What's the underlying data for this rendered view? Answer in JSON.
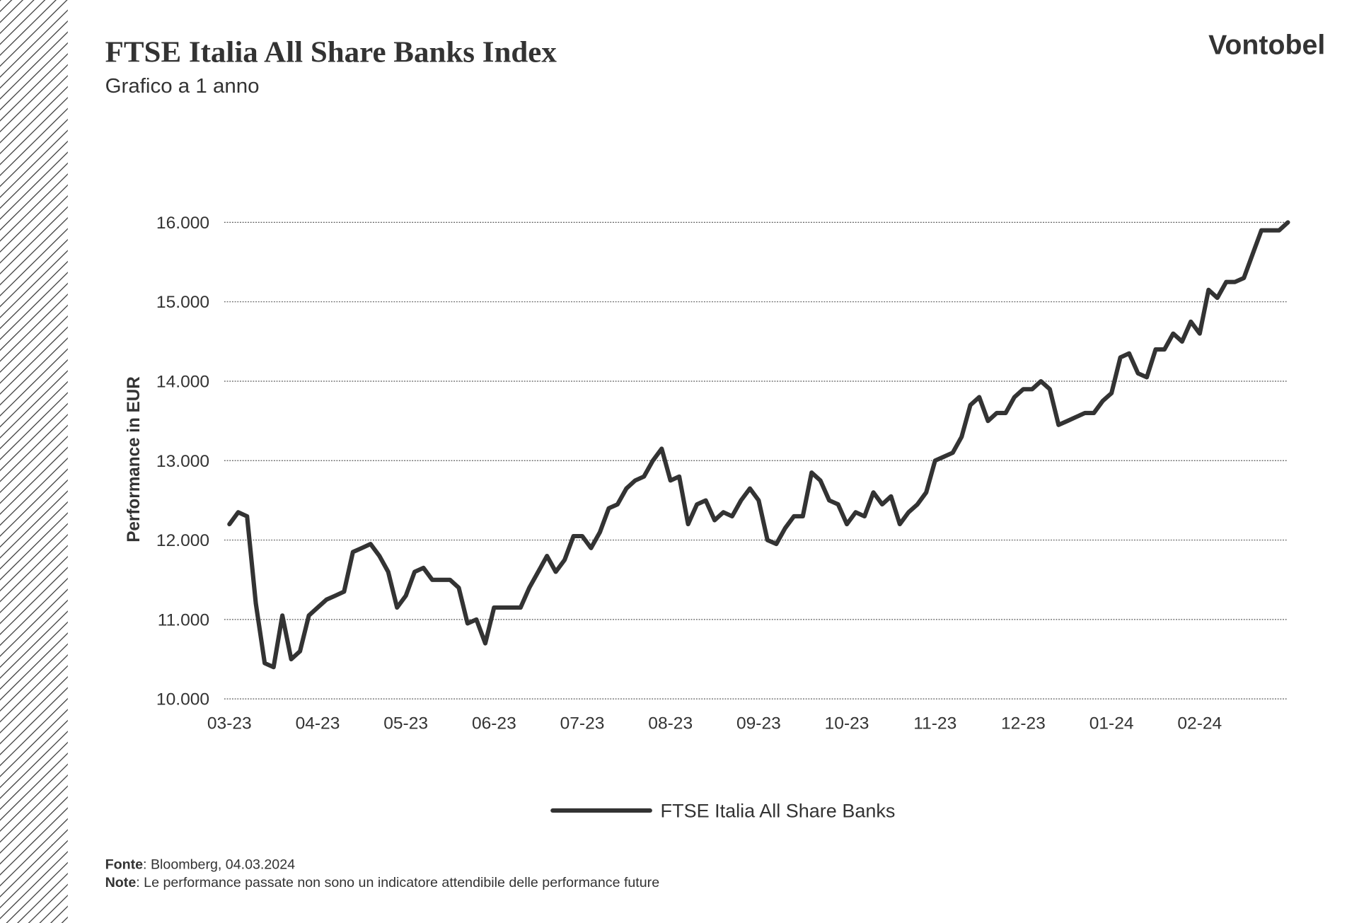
{
  "logo": "Vontobel",
  "footnotes": [
    {
      "label": "Fonte",
      "text": ": Bloomberg, 04.03.2024"
    },
    {
      "label": "Note",
      "text": ": Le performance passate non sono un indicatore attendibile delle performance future"
    }
  ],
  "chart_data": {
    "type": "line",
    "title": "FTSE Italia All Share Banks Index",
    "subtitle": "Grafico a 1 anno",
    "ylabel": "Performance in EUR",
    "categories": [
      "03-23",
      null,
      null,
      null,
      null,
      null,
      null,
      null,
      null,
      null,
      "04-23",
      null,
      null,
      null,
      null,
      null,
      null,
      null,
      null,
      null,
      "05-23",
      null,
      null,
      null,
      null,
      null,
      null,
      null,
      null,
      null,
      "06-23",
      null,
      null,
      null,
      null,
      null,
      null,
      null,
      null,
      null,
      "07-23",
      null,
      null,
      null,
      null,
      null,
      null,
      null,
      null,
      null,
      "08-23",
      null,
      null,
      null,
      null,
      null,
      null,
      null,
      null,
      null,
      "09-23",
      null,
      null,
      null,
      null,
      null,
      null,
      null,
      null,
      null,
      "10-23",
      null,
      null,
      null,
      null,
      null,
      null,
      null,
      null,
      null,
      "11-23",
      null,
      null,
      null,
      null,
      null,
      null,
      null,
      null,
      null,
      "12-23",
      null,
      null,
      null,
      null,
      null,
      null,
      null,
      null,
      null,
      "01-24",
      null,
      null,
      null,
      null,
      null,
      null,
      null,
      null,
      null,
      "02-24",
      null,
      null,
      null,
      null,
      null,
      null,
      null,
      null,
      null,
      null
    ],
    "series": [
      {
        "name": "FTSE Italia All Share Banks",
        "color": "#333333",
        "values": [
          12200,
          12350,
          12300,
          11200,
          10450,
          10400,
          11050,
          10500,
          10600,
          11050,
          11150,
          11250,
          11300,
          11350,
          11850,
          11900,
          11950,
          11800,
          11600,
          11150,
          11300,
          11600,
          11650,
          11500,
          11500,
          11500,
          11400,
          10950,
          11000,
          10700,
          11150,
          11150,
          11150,
          11150,
          11400,
          11600,
          11800,
          11600,
          11750,
          12050,
          12050,
          11900,
          12100,
          12400,
          12450,
          12650,
          12750,
          12800,
          13000,
          13150,
          12750,
          12800,
          12200,
          12450,
          12500,
          12250,
          12350,
          12300,
          12500,
          12650,
          12500,
          12000,
          11950,
          12150,
          12300,
          12300,
          12850,
          12750,
          12500,
          12450,
          12200,
          12350,
          12300,
          12600,
          12450,
          12550,
          12200,
          12350,
          12450,
          12600,
          13000,
          13050,
          13100,
          13300,
          13700,
          13800,
          13500,
          13600,
          13600,
          13800,
          13900,
          13900,
          14000,
          13900,
          13450,
          13500,
          13550,
          13600,
          13600,
          13750,
          13850,
          14300,
          14350,
          14100,
          14050,
          14400,
          14400,
          14600,
          14500,
          14750,
          14600,
          15150,
          15050,
          15250,
          15250,
          15300,
          15600,
          15900,
          15900,
          15900,
          16000
        ]
      }
    ],
    "ylim": [
      10000,
      16000
    ],
    "yticks": [
      {
        "value": 10000,
        "label": "10.000"
      },
      {
        "value": 11000,
        "label": "11.000"
      },
      {
        "value": 12000,
        "label": "12.000"
      },
      {
        "value": 13000,
        "label": "13.000"
      },
      {
        "value": 14000,
        "label": "14.000"
      },
      {
        "value": 15000,
        "label": "15.000"
      },
      {
        "value": 16000,
        "label": "16.000"
      }
    ],
    "grid": true,
    "legend": "bottom"
  }
}
